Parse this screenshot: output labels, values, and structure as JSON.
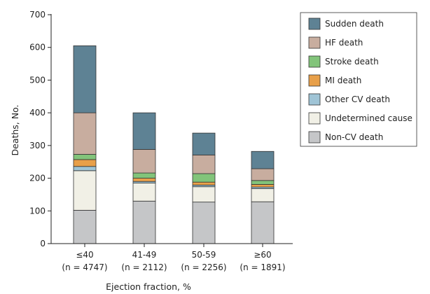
{
  "chart_data": {
    "type": "bar",
    "stacked": true,
    "categories": [
      "≤40",
      "41-49",
      "50-59",
      "≥60"
    ],
    "category_sublabels": [
      "(n = 4747)",
      "(n = 2112)",
      "(n = 2256)",
      "(n = 1891)"
    ],
    "xlabel": "Ejection fraction, %",
    "ylabel": "Deaths, No.",
    "ylim": [
      0,
      700
    ],
    "yticks": [
      0,
      100,
      200,
      300,
      400,
      500,
      600,
      700
    ],
    "grid": false,
    "legend_position": "top-right",
    "series": [
      {
        "name": "Non-CV death",
        "color": "#c5c6c8",
        "values": [
          102,
          130,
          127,
          128
        ]
      },
      {
        "name": "Undetermined cause",
        "color": "#f1f0e6",
        "values": [
          121,
          55,
          47,
          40
        ]
      },
      {
        "name": "Other CV death",
        "color": "#9fc4d6",
        "values": [
          13,
          5,
          5,
          5
        ]
      },
      {
        "name": "MI death",
        "color": "#e8a04a",
        "values": [
          21,
          10,
          9,
          8
        ]
      },
      {
        "name": "Stroke death",
        "color": "#82c47a",
        "values": [
          16,
          16,
          26,
          12
        ]
      },
      {
        "name": "HF death",
        "color": "#c8ad9f",
        "values": [
          127,
          72,
          57,
          36
        ]
      },
      {
        "name": "Sudden death",
        "color": "#5e8294",
        "values": [
          205,
          112,
          67,
          53
        ]
      }
    ],
    "legend_order": [
      "Sudden death",
      "HF death",
      "Stroke death",
      "MI death",
      "Other CV death",
      "Undetermined cause",
      "Non-CV death"
    ]
  }
}
